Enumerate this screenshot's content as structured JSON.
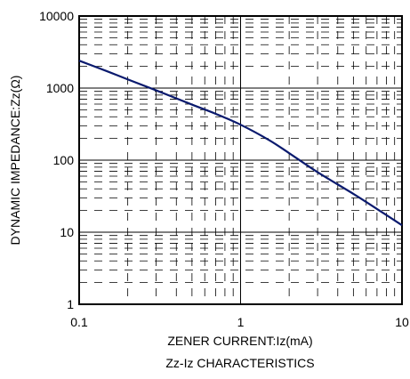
{
  "chart_data": {
    "type": "line",
    "title": "Zz-Iz CHARACTERISTICS",
    "xlabel": "ZENER CURRENT:Iz(mA)",
    "ylabel": "DYNAMIC IMPEDANCE:Zz(Ω)",
    "x_scale": "log",
    "y_scale": "log",
    "xlim": [
      0.1,
      10
    ],
    "ylim": [
      1,
      10000
    ],
    "x_ticks": [
      "0.1",
      "1",
      "10"
    ],
    "y_ticks": [
      "1",
      "10",
      "100",
      "1000",
      "10000"
    ],
    "grid": true,
    "line_color": "#0a1a6e",
    "series": [
      {
        "x": [
          0.1,
          0.15,
          0.2,
          0.3,
          0.5,
          0.7,
          1.0,
          1.5,
          2.0,
          3.0,
          5.0,
          7.0,
          10.0
        ],
        "values": [
          2400,
          1700,
          1320,
          930,
          590,
          440,
          310,
          190,
          125,
          68,
          34,
          21,
          12.5
        ]
      }
    ]
  }
}
